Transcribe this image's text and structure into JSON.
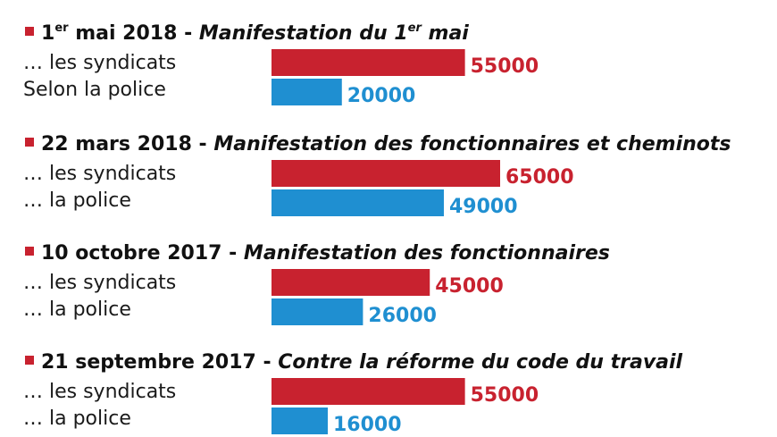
{
  "colors": {
    "syndicats": "#c8222f",
    "police": "#1f8fd1",
    "bullet": "#c8222f",
    "text": "#111111"
  },
  "chart_data": {
    "type": "bar",
    "orientation": "horizontal",
    "xlim": [
      0,
      65000
    ],
    "groups": [
      {
        "date": "1",
        "date_sup": "er",
        "date_rest": " mai 2018 - ",
        "event": "Manifestation du 1",
        "event_sup": "er",
        "event_rest": " mai",
        "rows": [
          {
            "label": "… les syndicats",
            "value": 55000,
            "value_label": "55000",
            "source": "syndicats"
          },
          {
            "label": "Selon la police",
            "value": 20000,
            "value_label": "20000",
            "source": "police"
          }
        ]
      },
      {
        "date": "22 mars 2018 - ",
        "event": "Manifestation des fonctionnaires et cheminots",
        "rows": [
          {
            "label": "… les syndicats",
            "value": 65000,
            "value_label": "65000",
            "source": "syndicats"
          },
          {
            "label": "… la police",
            "value": 49000,
            "value_label": "49000",
            "source": "police"
          }
        ]
      },
      {
        "date": "10 octobre 2017 - ",
        "event": "Manifestation des fonctionnaires",
        "rows": [
          {
            "label": "… les syndicats",
            "value": 45000,
            "value_label": "45000",
            "source": "syndicats"
          },
          {
            "label": "… la police",
            "value": 26000,
            "value_label": "26000",
            "source": "police"
          }
        ]
      },
      {
        "date": "21 septembre 2017 - ",
        "event": "Contre la réforme du code du travail",
        "rows": [
          {
            "label": "… les syndicats",
            "value": 55000,
            "value_label": "55000",
            "source": "syndicats"
          },
          {
            "label": "… la police",
            "value": 16000,
            "value_label": "16000",
            "source": "police"
          }
        ]
      }
    ]
  }
}
